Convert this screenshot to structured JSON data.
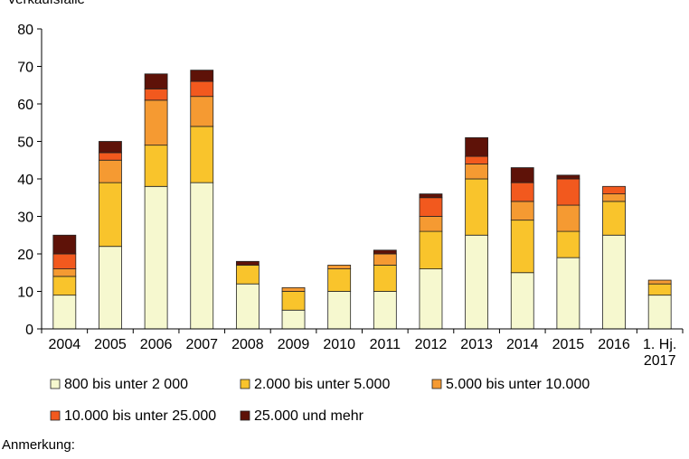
{
  "chart_data": {
    "type": "bar",
    "stacked": true,
    "ylabel": "Verkaufsfälle",
    "ylim": [
      0,
      80
    ],
    "yticks": [
      0,
      10,
      20,
      30,
      40,
      50,
      60,
      70,
      80
    ],
    "categories": [
      "2004",
      "2005",
      "2006",
      "2007",
      "2008",
      "2009",
      "2010",
      "2011",
      "2012",
      "2013",
      "2014",
      "2015",
      "2016",
      "1. Hj. 2017"
    ],
    "series": [
      {
        "name": "800 bis unter 2 000",
        "color": "#f6f8cf",
        "values": [
          9,
          22,
          38,
          39,
          12,
          5,
          10,
          10,
          16,
          25,
          15,
          19,
          25,
          9
        ]
      },
      {
        "name": "2.000 bis unter 5.000",
        "color": "#f9c42c",
        "values": [
          5,
          17,
          11,
          15,
          5,
          5,
          6,
          7,
          10,
          15,
          14,
          7,
          9,
          3
        ]
      },
      {
        "name": "5.000 bis unter 10.000",
        "color": "#f59a32",
        "values": [
          2,
          6,
          12,
          8,
          0,
          1,
          1,
          3,
          4,
          4,
          5,
          7,
          2,
          1
        ]
      },
      {
        "name": "10.000 bis unter 25.000",
        "color": "#f2591e",
        "values": [
          4,
          2,
          3,
          4,
          0,
          0,
          0,
          0,
          5,
          2,
          5,
          7,
          2,
          0
        ]
      },
      {
        "name": "25.000 und mehr",
        "color": "#5e1208",
        "values": [
          5,
          3,
          4,
          3,
          1,
          0,
          0,
          1,
          1,
          5,
          4,
          1,
          0,
          0
        ]
      }
    ],
    "legend_position": "bottom",
    "grid": false
  },
  "note": "Anmerkung:"
}
